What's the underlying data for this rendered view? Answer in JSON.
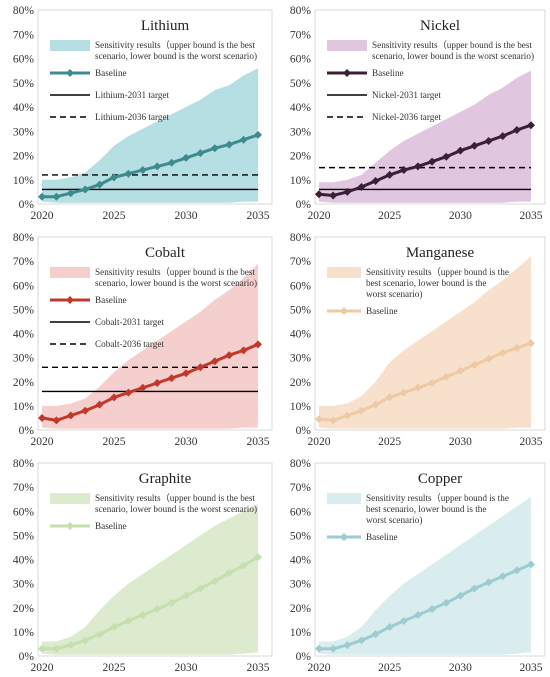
{
  "chart_data": [
    {
      "type": "area",
      "title": "Lithium",
      "x": [
        2020,
        2021,
        2022,
        2023,
        2024,
        2025,
        2026,
        2027,
        2028,
        2029,
        2030,
        2031,
        2032,
        2033,
        2034,
        2035
      ],
      "xticks": [
        2020,
        2025,
        2030,
        2035
      ],
      "ylim": [
        0,
        80
      ],
      "yticks": [
        "0%",
        "10%",
        "20%",
        "30%",
        "40%",
        "50%",
        "60%",
        "70%",
        "80%"
      ],
      "band_color": "#b5dfe2",
      "baseline_color": "#3d8b8e",
      "series": [
        {
          "name": "Sensitivity results（upper bound is the best scenario, lower bound is the worst scenario)",
          "role": "band",
          "upper": [
            10,
            10,
            11,
            13,
            18,
            24,
            28,
            31,
            34,
            37,
            40,
            43,
            47,
            49,
            53,
            56
          ],
          "lower": [
            1,
            0.5,
            0.5,
            0.5,
            0.5,
            0.5,
            0.5,
            0.5,
            0.5,
            0.5,
            0.5,
            0.5,
            0.5,
            0.5,
            1,
            1
          ]
        },
        {
          "name": "Baseline",
          "role": "line",
          "values": [
            3,
            3,
            4.5,
            6,
            8,
            11,
            12.5,
            14,
            15.5,
            17,
            19,
            21,
            23,
            24.5,
            26.5,
            28.5
          ]
        },
        {
          "name": "Lithium-2031 target",
          "role": "target",
          "style": "solid",
          "value": 6
        },
        {
          "name": "Lithium-2036 target",
          "role": "target",
          "style": "dashed",
          "value": 12
        }
      ]
    },
    {
      "type": "area",
      "title": "Nickel",
      "x": [
        2020,
        2021,
        2022,
        2023,
        2024,
        2025,
        2026,
        2027,
        2028,
        2029,
        2030,
        2031,
        2032,
        2033,
        2034,
        2035
      ],
      "xticks": [
        2020,
        2025,
        2030,
        2035
      ],
      "ylim": [
        0,
        80
      ],
      "yticks": [
        "0%",
        "10%",
        "20%",
        "30%",
        "40%",
        "50%",
        "60%",
        "70%",
        "80%"
      ],
      "band_color": "#e0c6de",
      "baseline_color": "#3b1f36",
      "series": [
        {
          "name": "Sensitivity results（upper bound is the best scenario, lower bound is the worst scenario)",
          "role": "band",
          "upper": [
            9,
            9,
            10,
            12,
            17,
            22,
            26,
            29,
            32,
            35,
            38,
            41,
            45,
            48,
            52,
            55
          ],
          "lower": [
            1,
            0.5,
            0.5,
            0.5,
            0.5,
            0.5,
            0.5,
            0.5,
            0.5,
            0.5,
            0.5,
            0.5,
            0.5,
            0.5,
            1,
            1
          ]
        },
        {
          "name": "Baseline",
          "role": "line",
          "values": [
            4,
            3.5,
            5,
            7,
            9.5,
            12,
            14,
            15.5,
            17.5,
            19.5,
            22,
            24,
            26,
            28,
            30.5,
            32.5
          ]
        },
        {
          "name": "Nickel-2031 target",
          "role": "target",
          "style": "solid",
          "value": 6
        },
        {
          "name": "Nickel-2036 target",
          "role": "target",
          "style": "dashed",
          "value": 15
        }
      ]
    },
    {
      "type": "area",
      "title": "Cobalt",
      "x": [
        2020,
        2021,
        2022,
        2023,
        2024,
        2025,
        2026,
        2027,
        2028,
        2029,
        2030,
        2031,
        2032,
        2033,
        2034,
        2035
      ],
      "xticks": [
        2020,
        2025,
        2030,
        2035
      ],
      "ylim": [
        0,
        80
      ],
      "yticks": [
        "0%",
        "10%",
        "20%",
        "30%",
        "40%",
        "50%",
        "60%",
        "70%",
        "80%"
      ],
      "band_color": "#f5cfcd",
      "baseline_color": "#c0392b",
      "series": [
        {
          "name": "Sensitivity results（upper bound is the best scenario, lower bound is the worst scenario)",
          "role": "band",
          "upper": [
            10,
            10,
            11,
            13,
            18,
            24,
            29,
            33,
            37,
            41,
            45,
            49,
            54,
            58,
            63,
            69
          ],
          "lower": [
            1,
            0.5,
            0.5,
            0.5,
            0.5,
            0.5,
            0.5,
            0.5,
            0.5,
            0.5,
            0.5,
            0.5,
            0.5,
            0.5,
            1,
            1
          ]
        },
        {
          "name": "Baseline",
          "role": "line",
          "values": [
            5,
            4,
            6,
            8,
            10.5,
            13.5,
            15.5,
            17.5,
            19.5,
            21.5,
            23.5,
            26,
            28.5,
            31,
            33,
            35.5
          ]
        },
        {
          "name": "Cobalt-2031 target",
          "role": "target",
          "style": "solid",
          "value": 16
        },
        {
          "name": "Cobalt-2036 target",
          "role": "target",
          "style": "dashed",
          "value": 26
        }
      ]
    },
    {
      "type": "area",
      "title": "Manganese",
      "x": [
        2020,
        2021,
        2022,
        2023,
        2024,
        2025,
        2026,
        2027,
        2028,
        2029,
        2030,
        2031,
        2032,
        2033,
        2034,
        2035
      ],
      "xticks": [
        2020,
        2025,
        2030,
        2035
      ],
      "ylim": [
        0,
        80
      ],
      "yticks": [
        "0%",
        "10%",
        "20%",
        "30%",
        "40%",
        "50%",
        "60%",
        "70%",
        "80%"
      ],
      "band_color": "#f8e1cc",
      "baseline_color": "#efc9a4",
      "series": [
        {
          "name": "Sensitivity results（upper bound is the best scenario, lower bound is the worst scenario)",
          "role": "band",
          "upper": [
            10,
            10,
            11,
            14,
            20,
            28,
            33,
            37,
            41,
            45,
            49,
            53,
            58,
            62,
            67,
            72
          ],
          "lower": [
            1,
            0.5,
            0.5,
            0.5,
            0.5,
            0.5,
            0.5,
            0.5,
            0.5,
            0.5,
            0.5,
            0.5,
            0.5,
            0.5,
            1,
            1
          ]
        },
        {
          "name": "Baseline",
          "role": "line",
          "values": [
            4.5,
            4,
            6,
            8,
            10.5,
            13.5,
            15.5,
            17.5,
            19.5,
            22,
            24.5,
            27,
            29.5,
            32,
            34,
            36
          ]
        }
      ]
    },
    {
      "type": "area",
      "title": "Graphite",
      "x": [
        2020,
        2021,
        2022,
        2023,
        2024,
        2025,
        2026,
        2027,
        2028,
        2029,
        2030,
        2031,
        2032,
        2033,
        2034,
        2035
      ],
      "xticks": [
        2020,
        2025,
        2030,
        2035
      ],
      "ylim": [
        0,
        80
      ],
      "yticks": [
        "0%",
        "10%",
        "20%",
        "30%",
        "40%",
        "50%",
        "60%",
        "70%",
        "80%"
      ],
      "band_color": "#dcebcd",
      "baseline_color": "#c5dfae",
      "series": [
        {
          "name": "Sensitivity results（upper bound is the best scenario, lower bound is the worst scenario)",
          "role": "band",
          "upper": [
            6,
            6,
            8,
            12,
            19,
            25,
            30,
            34,
            38,
            42,
            46,
            50,
            54,
            57,
            60,
            63
          ],
          "lower": [
            1,
            0.5,
            0.5,
            0.5,
            0.5,
            0.5,
            0.5,
            0.5,
            0.5,
            0.5,
            0.5,
            0.5,
            0.5,
            0.5,
            1,
            1.5
          ]
        },
        {
          "name": "Baseline",
          "role": "line",
          "values": [
            3,
            3,
            4.5,
            6.5,
            9,
            12,
            14.5,
            17,
            19.5,
            22,
            25,
            28,
            31,
            34.5,
            37.5,
            41
          ]
        }
      ]
    },
    {
      "type": "area",
      "title": "Copper",
      "x": [
        2020,
        2021,
        2022,
        2023,
        2024,
        2025,
        2026,
        2027,
        2028,
        2029,
        2030,
        2031,
        2032,
        2033,
        2034,
        2035
      ],
      "xticks": [
        2020,
        2025,
        2030,
        2035
      ],
      "ylim": [
        0,
        80
      ],
      "yticks": [
        "0%",
        "10%",
        "20%",
        "30%",
        "40%",
        "50%",
        "60%",
        "70%",
        "80%"
      ],
      "band_color": "#daedee",
      "baseline_color": "#9cccd2",
      "series": [
        {
          "name": "Sensitivity results（upper bound is the best scenario, lower bound is the worst scenario)",
          "role": "band",
          "upper": [
            6,
            6,
            8,
            12,
            19,
            25,
            30,
            34,
            38,
            42,
            46,
            50,
            54,
            58,
            62,
            66
          ],
          "lower": [
            1,
            0.5,
            0.5,
            0.5,
            0.5,
            0.5,
            0.5,
            0.5,
            0.5,
            0.5,
            0.5,
            0.5,
            0.5,
            0.5,
            1,
            1.5
          ]
        },
        {
          "name": "Baseline",
          "role": "line",
          "values": [
            3,
            3,
            4.5,
            6.5,
            9,
            12,
            14.5,
            17,
            19.5,
            22,
            25,
            28,
            30.5,
            33,
            35.5,
            38
          ]
        }
      ]
    }
  ]
}
